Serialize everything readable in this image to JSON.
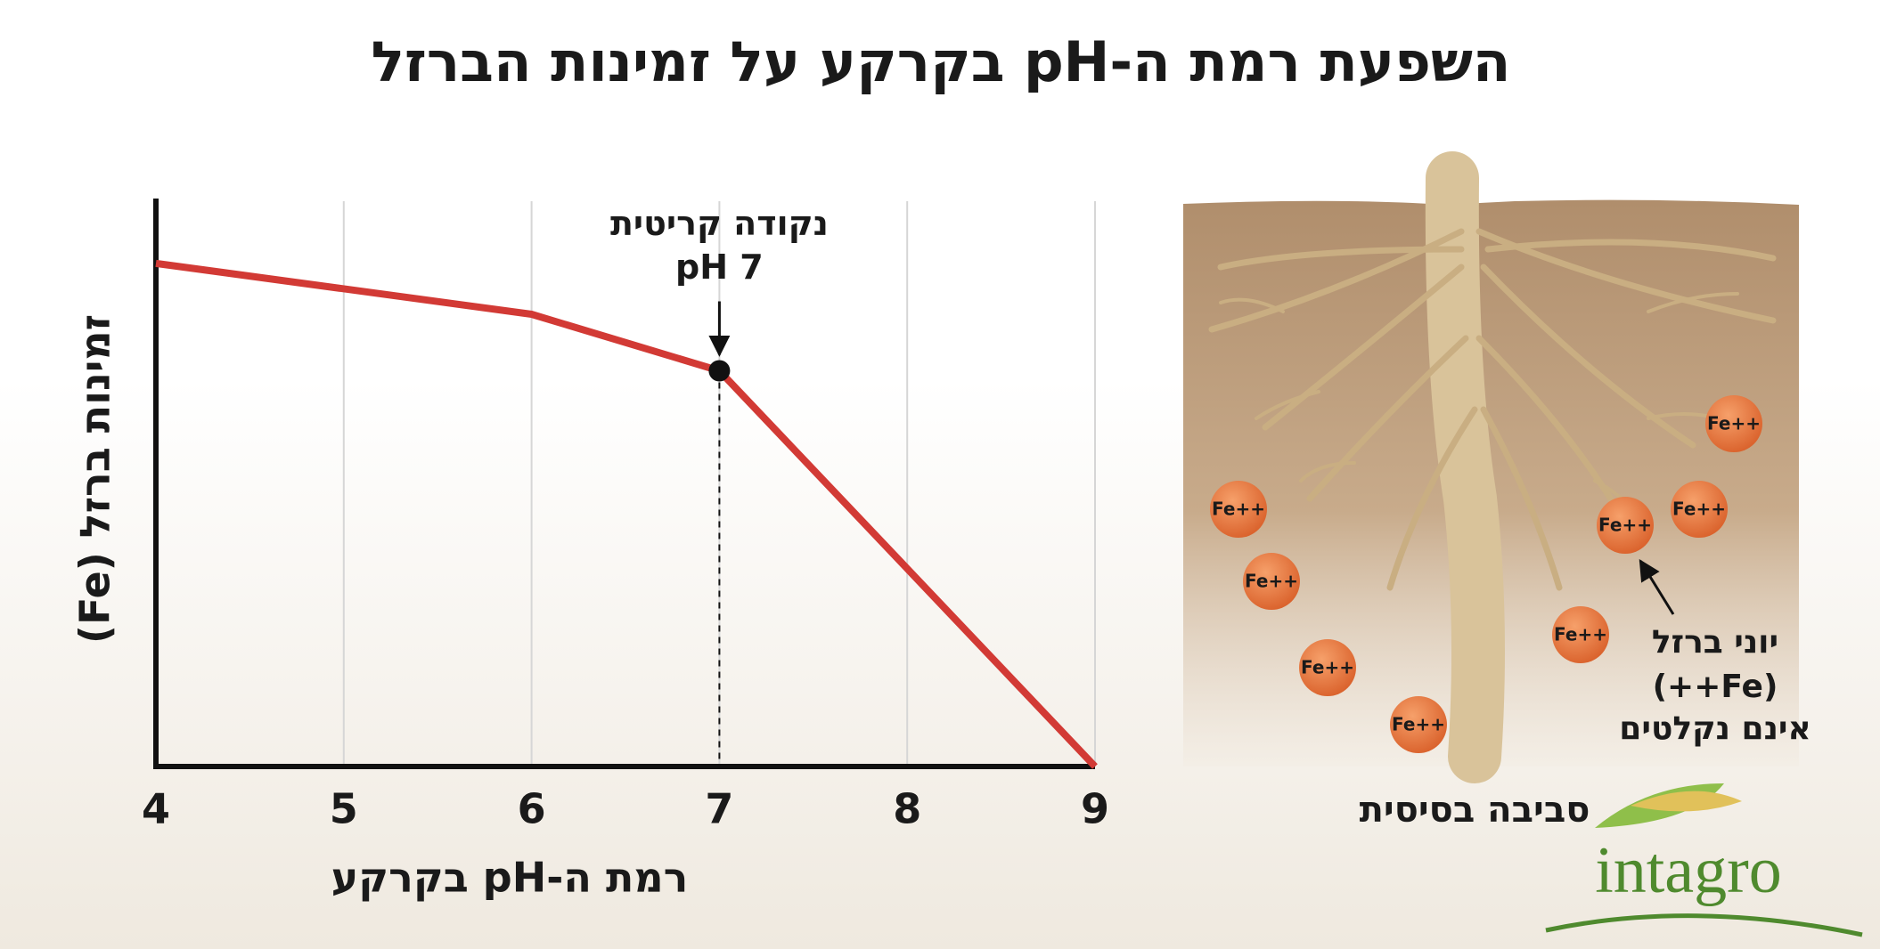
{
  "chart_data": {
    "type": "line",
    "title": "השפעת רמת ה-pH בקרקע על זמינות הברזל",
    "x_label": "רמת ה-pH בקרקע",
    "y_label": "זמינות ברזל (Fe)",
    "x": [
      4,
      6,
      7,
      9
    ],
    "values": [
      89,
      80,
      70,
      0
    ],
    "color": "#d23a35",
    "xlim": [
      4,
      9
    ],
    "xticks": [
      4,
      5,
      6,
      7,
      8,
      9
    ],
    "ylim": [
      0,
      100
    ],
    "grid": true,
    "annotation": {
      "x": 7,
      "lines": [
        "נקודה קריטית",
        "pH 7"
      ]
    }
  },
  "illustration": {
    "ion_label": "Fe++",
    "caption": [
      "יוני ברזל",
      "(Fe++)",
      "אינם נקלטים"
    ],
    "environment_label": "סביבה בסיסית",
    "logo": "intagro"
  }
}
